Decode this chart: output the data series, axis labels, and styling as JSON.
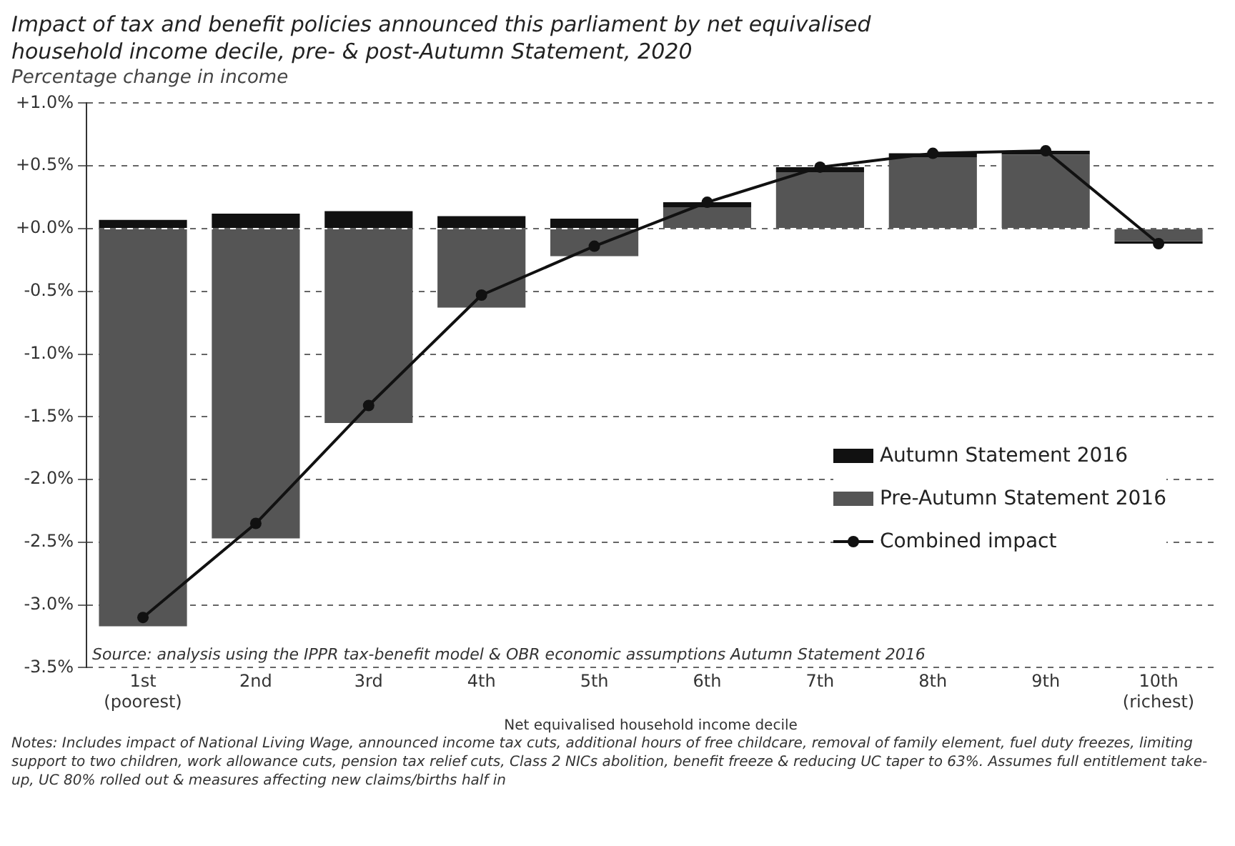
{
  "chart_data": {
    "type": "bar",
    "title": "Impact of tax and benefit policies announced this parliament by net equivalised household income decile, pre- & post-Autumn Statement, 2020",
    "ylabel": "Percentage change in income",
    "xlabel": "Net equivalised household income decile",
    "categories": [
      "1st (poorest)",
      "2nd",
      "3rd",
      "4th",
      "5th",
      "6th",
      "7th",
      "8th",
      "9th",
      "10th (richest)"
    ],
    "stacked": true,
    "series": [
      {
        "name": "Pre-Autumn Statement 2016",
        "color": "#555555",
        "values": [
          -3.17,
          -2.47,
          -1.55,
          -0.63,
          -0.22,
          0.17,
          0.45,
          0.57,
          0.59,
          -0.1
        ]
      },
      {
        "name": "Autumn Statement 2016",
        "color": "#111111",
        "values": [
          0.07,
          0.12,
          0.14,
          0.1,
          0.08,
          0.04,
          0.04,
          0.03,
          0.03,
          -0.02
        ]
      },
      {
        "name": "Combined impact",
        "type": "line",
        "color": "#111111",
        "marker": "circle",
        "values": [
          -3.1,
          -2.35,
          -1.41,
          -0.53,
          -0.14,
          0.21,
          0.49,
          0.6,
          0.62,
          -0.12
        ]
      }
    ],
    "ylim": [
      -3.5,
      1
    ],
    "yticks": [
      {
        "value": -3.5,
        "label": "-3.5%"
      },
      {
        "value": -3,
        "label": "-3.0%"
      },
      {
        "value": -2.5,
        "label": "-2.5%"
      },
      {
        "value": -2,
        "label": "-2.0%"
      },
      {
        "value": -1.5,
        "label": "-1.5%"
      },
      {
        "value": -1,
        "label": "-1.0%"
      },
      {
        "value": -0.5,
        "label": "-0.5%"
      },
      {
        "value": 0,
        "label": "+0.0%"
      },
      {
        "value": 0.5,
        "label": "+0.5%"
      },
      {
        "value": 1,
        "label": "+1.0%"
      }
    ],
    "grid": "y",
    "legend": "bottom right",
    "annotations": [
      "Source: analysis using the IPPR tax-benefit model & OBR economic assumptions Autumn Statement 2016",
      "Notes: Includes impact of National Living Wage, announced income tax cuts, additional hours of free childcare, removal of family element, fuel duty freezes, limiting support to two children, work allowance cuts, pension tax relief cuts, Class 2 NICs abolition, benefit freeze & reducing UC taper to 63%. Assumes full entitlement take-up, UC 80% rolled out & measures affecting new claims/births half in"
    ]
  }
}
